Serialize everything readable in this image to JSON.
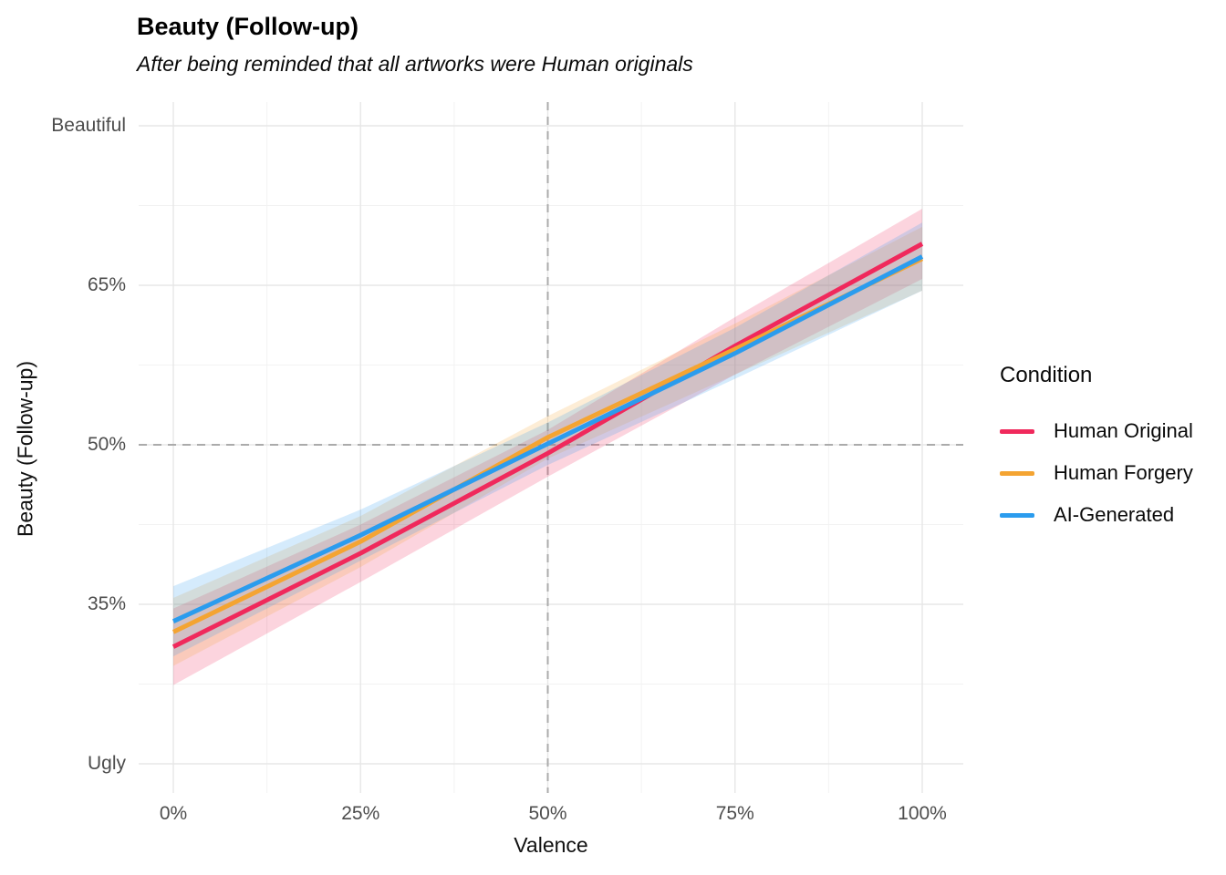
{
  "chart_data": {
    "type": "line",
    "title": "Beauty (Follow-up)",
    "subtitle": "After being reminded that all artworks were Human originals",
    "xlabel": "Valence",
    "ylabel": "Beauty (Follow-up)",
    "xlim": [
      0,
      100
    ],
    "ylim": [
      20,
      80
    ],
    "grid": true,
    "x_ticks": {
      "values": [
        0,
        25,
        50,
        75,
        100
      ],
      "labels": [
        "0%",
        "25%",
        "50%",
        "75%",
        "100%"
      ]
    },
    "y_ticks": {
      "values": [
        20,
        35,
        50,
        65,
        80
      ],
      "labels": [
        "Ugly",
        "35%",
        "50%",
        "65%",
        "Beautiful"
      ]
    },
    "minor_x_ticks": [
      12.5,
      37.5,
      62.5,
      87.5
    ],
    "minor_y_ticks": [
      27.5,
      42.5,
      57.5,
      72.5
    ],
    "reference_lines": [
      {
        "axis": "x",
        "value": 50,
        "style": "dashed",
        "color": "#ababab"
      },
      {
        "axis": "y",
        "value": 50,
        "style": "dashed",
        "color": "#ababab"
      }
    ],
    "x": [
      0,
      25,
      50,
      75,
      100
    ],
    "series": [
      {
        "name": "Human Original",
        "color": "#F0295C",
        "values": [
          31.0,
          39.8,
          49.2,
          59.3,
          68.9
        ],
        "ci_halfwidth": [
          3.6,
          2.7,
          2.2,
          2.7,
          3.3
        ]
      },
      {
        "name": "Human Forgery",
        "color": "#F4A432",
        "values": [
          32.4,
          40.9,
          50.7,
          59.0,
          67.5
        ],
        "ci_halfwidth": [
          3.2,
          2.4,
          2.0,
          2.4,
          3.0
        ]
      },
      {
        "name": "AI-Generated",
        "color": "#2B9CEE",
        "values": [
          33.4,
          41.5,
          50.1,
          58.6,
          67.7
        ],
        "ci_halfwidth": [
          3.3,
          2.4,
          2.0,
          2.4,
          3.2
        ]
      }
    ],
    "legend": {
      "title": "Condition",
      "position": "right"
    },
    "band_opacity": 0.2
  }
}
